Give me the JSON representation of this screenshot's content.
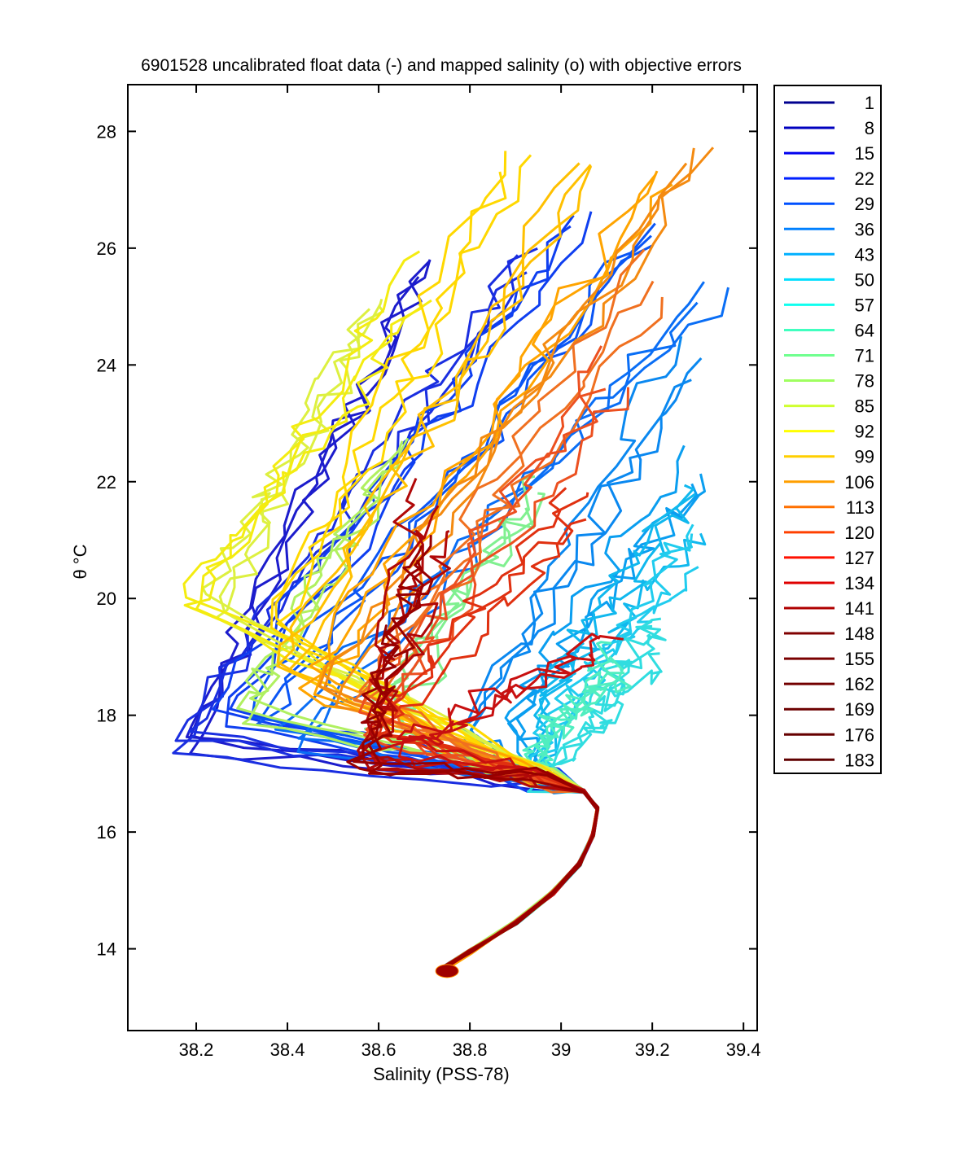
{
  "chart_data": {
    "type": "line",
    "title": "6901528 uncalibrated float data (-) and mapped salinity (o) with objective errors",
    "xlabel": "Salinity (PSS-78)",
    "ylabel_symbol": "θ",
    "ylabel_unit": "°C",
    "xlim": [
      38.05,
      39.43
    ],
    "ylim": [
      12.6,
      28.8
    ],
    "xticks": [
      38.2,
      38.4,
      38.6,
      38.8,
      39,
      39.2,
      39.4
    ],
    "xtick_labels": [
      "38.2",
      "38.4",
      "38.6",
      "38.8",
      "39",
      "39.2",
      "39.4"
    ],
    "yticks": [
      14,
      16,
      18,
      20,
      22,
      24,
      26,
      28
    ],
    "ytick_labels": [
      "14",
      "16",
      "18",
      "20",
      "22",
      "24",
      "26",
      "28"
    ],
    "grid": false,
    "legend_position": "outside-right",
    "colormap": "jet",
    "legend": [
      "1",
      "8",
      "15",
      "22",
      "29",
      "36",
      "43",
      "50",
      "57",
      "64",
      "71",
      "78",
      "85",
      "92",
      "99",
      "106",
      "113",
      "120",
      "127",
      "134",
      "141",
      "148",
      "155",
      "162",
      "169",
      "176",
      "183"
    ],
    "legend_colors": [
      "#00008f",
      "#0000bf",
      "#0000ef",
      "#0020ff",
      "#0050ff",
      "#0080ff",
      "#00b0ff",
      "#00dfff",
      "#10ffef",
      "#40ffbf",
      "#70ff8f",
      "#9fff60",
      "#cfff30",
      "#ffff00",
      "#ffcf00",
      "#ff9f00",
      "#ff7000",
      "#ff4000",
      "#ff1000",
      "#df0000",
      "#af0000",
      "#800000",
      "#7a0000",
      "#730000",
      "#6c0000",
      "#660000",
      "#600000"
    ],
    "series_colors": [
      "#1c1ccc",
      "#1a2ee0",
      "#0f3ff0",
      "#0a55f5",
      "#0a6ef5",
      "#0a88f0",
      "#0a9ef0",
      "#10b8ee",
      "#20ccee",
      "#30dde0",
      "#50eec0",
      "#80f090",
      "#b0f060",
      "#ddf040",
      "#f4ec10",
      "#ffd800",
      "#ffc000",
      "#ffa400",
      "#f48a10",
      "#f07020",
      "#ec5020",
      "#e03010",
      "#c81010",
      "#b00808",
      "#980000"
    ],
    "series_anchors": [
      {
        "warm_s": 38.7,
        "warm_t": 26.0,
        "min_s": 38.18,
        "min_t": 17.4
      },
      {
        "warm_s": 38.92,
        "warm_t": 26.0,
        "min_s": 38.16,
        "min_t": 17.6
      },
      {
        "warm_s": 39.05,
        "warm_t": 26.2,
        "min_s": 38.25,
        "min_t": 17.9
      },
      {
        "warm_s": 39.2,
        "warm_t": 26.5,
        "min_s": 38.32,
        "min_t": 18.1
      },
      {
        "warm_s": 39.33,
        "warm_t": 25.2,
        "min_s": 38.4,
        "min_t": 17.6
      },
      {
        "warm_s": 39.3,
        "warm_t": 24.2,
        "min_s": 38.8,
        "min_t": 17.7
      },
      {
        "warm_s": 39.28,
        "warm_t": 22.2,
        "min_s": 38.9,
        "min_t": 18.0
      },
      {
        "warm_s": 39.28,
        "warm_t": 21.5,
        "min_s": 38.95,
        "min_t": 18.3
      },
      {
        "warm_s": 39.3,
        "warm_t": 21.0,
        "min_s": 39.0,
        "min_t": 17.8
      },
      {
        "warm_s": 39.2,
        "warm_t": 19.4,
        "min_s": 39.05,
        "min_t": 17.6
      },
      {
        "warm_s": 39.15,
        "warm_t": 19.0,
        "min_s": 38.95,
        "min_t": 17.5
      },
      {
        "warm_s": 38.92,
        "warm_t": 21.8,
        "min_s": 38.6,
        "min_t": 17.8
      },
      {
        "warm_s": 38.66,
        "warm_t": 22.3,
        "min_s": 38.3,
        "min_t": 18.1
      },
      {
        "warm_s": 38.62,
        "warm_t": 24.8,
        "min_s": 38.25,
        "min_t": 19.9
      },
      {
        "warm_s": 38.72,
        "warm_t": 25.5,
        "min_s": 38.2,
        "min_t": 19.9
      },
      {
        "warm_s": 38.9,
        "warm_t": 27.5,
        "min_s": 38.35,
        "min_t": 19.5
      },
      {
        "warm_s": 39.05,
        "warm_t": 27.7,
        "min_s": 38.4,
        "min_t": 19.0
      },
      {
        "warm_s": 39.22,
        "warm_t": 27.1,
        "min_s": 38.45,
        "min_t": 18.6
      },
      {
        "warm_s": 39.3,
        "warm_t": 27.5,
        "min_s": 38.5,
        "min_t": 18.4
      },
      {
        "warm_s": 39.2,
        "warm_t": 25.5,
        "min_s": 38.55,
        "min_t": 18.2
      },
      {
        "warm_s": 39.12,
        "warm_t": 24.0,
        "min_s": 38.58,
        "min_t": 17.9
      },
      {
        "warm_s": 39.05,
        "warm_t": 21.8,
        "min_s": 38.6,
        "min_t": 17.6
      },
      {
        "warm_s": 39.1,
        "warm_t": 19.2,
        "min_s": 38.62,
        "min_t": 17.4
      },
      {
        "warm_s": 38.72,
        "warm_t": 21.6,
        "min_s": 38.58,
        "min_t": 17.2
      },
      {
        "warm_s": 38.68,
        "warm_t": 21.1,
        "min_s": 38.56,
        "min_t": 17.1
      }
    ],
    "deep_curve": [
      {
        "s": 38.74,
        "t": 13.65
      },
      {
        "s": 38.8,
        "t": 13.95
      },
      {
        "s": 38.9,
        "t": 14.45
      },
      {
        "s": 38.98,
        "t": 14.95
      },
      {
        "s": 39.04,
        "t": 15.45
      },
      {
        "s": 39.07,
        "t": 15.95
      },
      {
        "s": 39.08,
        "t": 16.4
      },
      {
        "s": 39.05,
        "t": 16.7
      },
      {
        "s": 38.96,
        "t": 16.9
      }
    ],
    "deep_end_marker": {
      "s": 38.75,
      "t": 13.62
    }
  }
}
